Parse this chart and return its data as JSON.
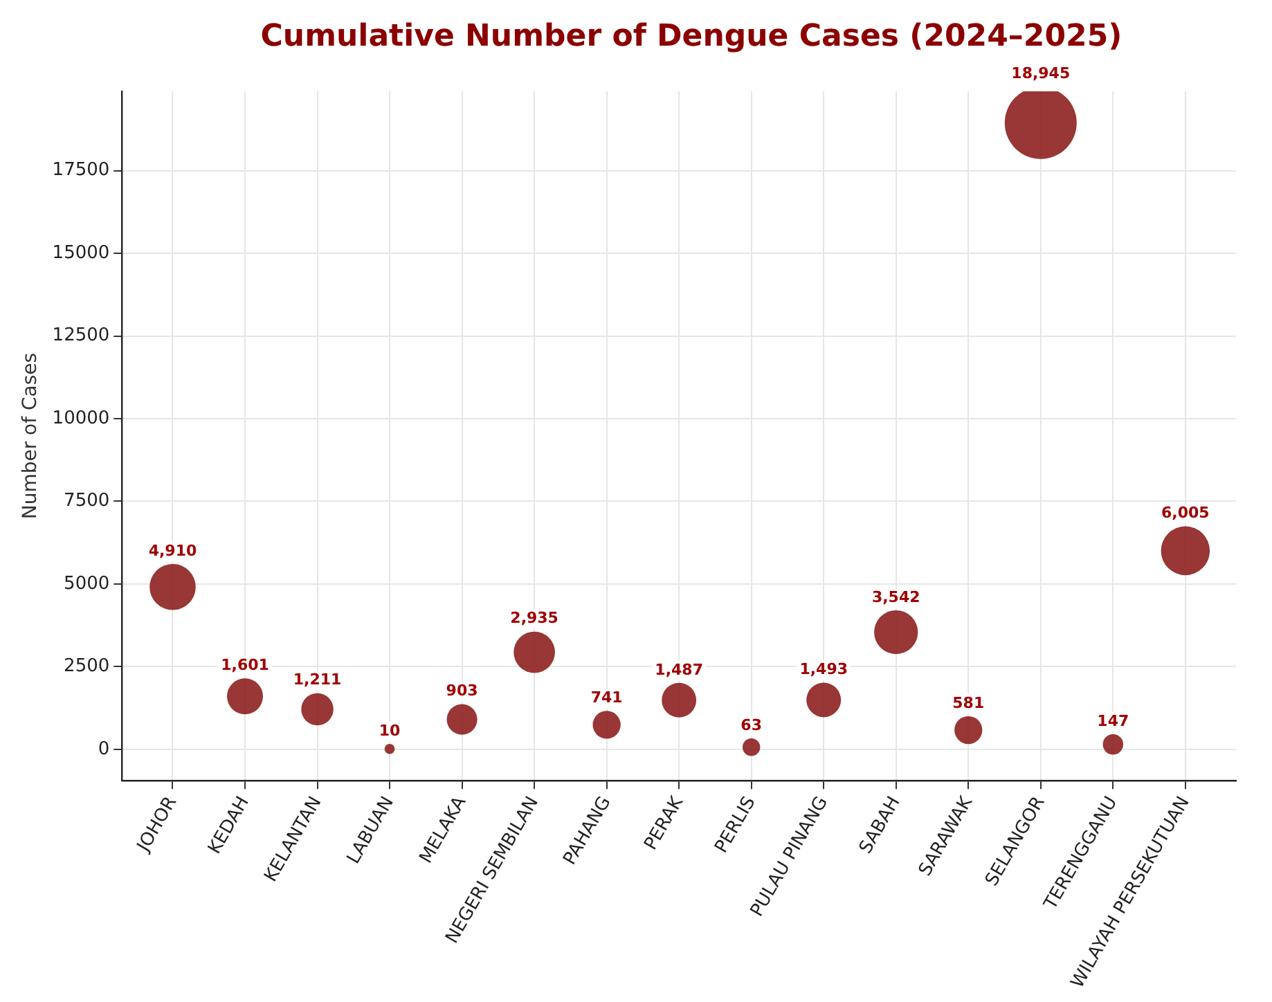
{
  "chart_data": {
    "type": "bubble",
    "title": "Cumulative Number of Dengue Cases (2024–2025)",
    "ylabel": "Number of Cases",
    "categories": [
      "JOHOR",
      "KEDAH",
      "KELANTAN",
      "LABUAN",
      "MELAKA",
      "NEGERI SEMBILAN",
      "PAHANG",
      "PERAK",
      "PERLIS",
      "PULAU PINANG",
      "SABAH",
      "SARAWAK",
      "SELANGOR",
      "TERENGGANU",
      "WILAYAH PERSEKUTUAN"
    ],
    "values": [
      4910,
      1601,
      1211,
      10,
      903,
      2935,
      741,
      1487,
      63,
      1493,
      3542,
      581,
      18945,
      147,
      6005
    ],
    "sizes": [
      0.41,
      0.25,
      0.2,
      0.02,
      0.18,
      0.33,
      0.15,
      0.23,
      0.06,
      0.23,
      0.37,
      0.15,
      1,
      0.08,
      0.46
    ],
    "color": "#8b1a1a",
    "ylim": [
      -950,
      19900
    ],
    "yticks": [
      0,
      2500,
      5000,
      7500,
      10000,
      12500,
      15000,
      17500
    ],
    "value_labels": [
      "4,910",
      "1,601",
      "1,211",
      "10",
      "903",
      "2,935",
      "741",
      "1,487",
      "63",
      "1,493",
      "3,542",
      "581",
      "18,945",
      "147",
      "6,005"
    ],
    "grid": true,
    "legend": false
  }
}
